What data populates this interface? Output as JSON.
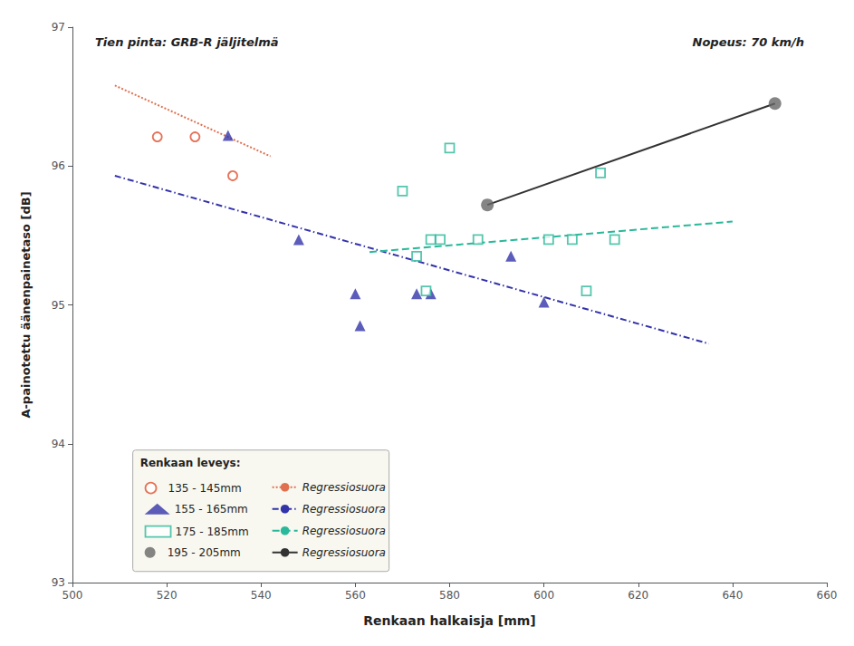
{
  "chart_data": {
    "type": "scatter",
    "annotations": [
      "Tien pinta: GRB-R jäljitelmä",
      "Nopeus: 70 km/h"
    ],
    "x_label": "Renkaan halkaisja [mm]",
    "y_label": "A-painotettu äänenpainetaso [dB]",
    "xlim": [
      500,
      660
    ],
    "ylim": [
      93,
      97
    ],
    "xticks": [
      500,
      520,
      540,
      560,
      580,
      600,
      620,
      640,
      660
    ],
    "yticks": [
      93,
      94,
      95,
      96,
      97
    ],
    "grid": false,
    "legend": "lower left",
    "legend_title": "Renkaan leveys:",
    "series": [
      {
        "name": "135 - 145mm",
        "type": "scatter",
        "marker": "circle-open",
        "color": "#e05030",
        "x": [
          518,
          526,
          534
        ],
        "values": [
          96.21,
          96.21,
          95.93
        ]
      },
      {
        "name": "155 - 165mm",
        "type": "scatter",
        "marker": "triangle",
        "color": "#3333aa",
        "x": [
          533,
          548,
          560,
          561,
          573,
          576,
          593,
          600
        ],
        "values": [
          96.22,
          95.47,
          95.08,
          94.85,
          95.08,
          95.08,
          95.35,
          95.02
        ]
      },
      {
        "name": "175 - 185mm",
        "type": "scatter",
        "marker": "square-open",
        "color": "#2ab89a",
        "x": [
          570,
          573,
          575,
          576,
          578,
          580,
          586,
          601,
          606,
          609,
          612,
          615
        ],
        "values": [
          95.82,
          95.35,
          95.1,
          95.47,
          95.47,
          96.13,
          95.47,
          95.47,
          95.47,
          95.1,
          95.95,
          95.47
        ]
      },
      {
        "name": "195 - 205mm",
        "type": "scatter",
        "marker": "circle",
        "color": "#666666",
        "x": [
          588,
          649
        ],
        "values": [
          95.72,
          96.45
        ]
      },
      {
        "name": "Regressiosuora",
        "type": "line",
        "line_style": "dotted",
        "color": "#e07050",
        "x": [
          509,
          542
        ],
        "values": [
          96.58,
          96.07
        ]
      },
      {
        "name": "Regressiosuora",
        "type": "line",
        "line_style": "dashdot",
        "color": "#3333aa",
        "x": [
          509,
          635
        ],
        "values": [
          95.93,
          94.72
        ]
      },
      {
        "name": "Regressiosuora",
        "type": "line",
        "line_style": "dashed",
        "color": "#2ab89a",
        "x": [
          563,
          640
        ],
        "values": [
          95.38,
          95.6
        ]
      },
      {
        "name": "Regressiosuora",
        "type": "line",
        "line_style": "solid",
        "color": "#333333",
        "x": [
          588,
          649
        ],
        "values": [
          95.72,
          96.45
        ]
      }
    ]
  }
}
